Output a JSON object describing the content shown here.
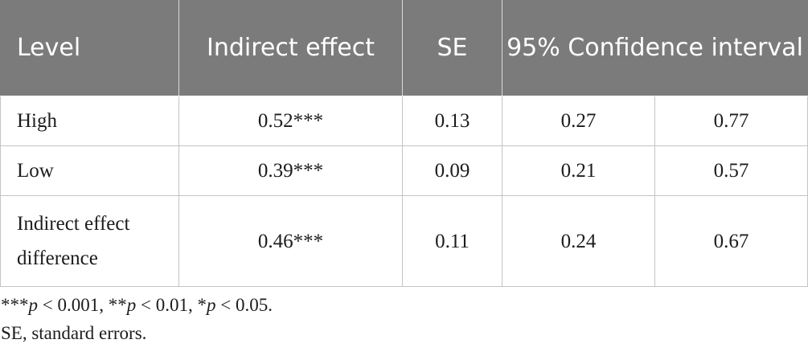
{
  "table": {
    "headers": {
      "level": "Level",
      "indirect_effect": "Indirect effect",
      "se": "SE",
      "ci": "95% Confidence interval"
    },
    "rows": [
      {
        "level": "High",
        "indirect_effect": "0.52***",
        "se": "0.13",
        "ci_lower": "0.27",
        "ci_upper": "0.77"
      },
      {
        "level": "Low",
        "indirect_effect": "0.39***",
        "se": "0.09",
        "ci_lower": "0.21",
        "ci_upper": "0.57"
      },
      {
        "level": "Indirect effect difference",
        "indirect_effect": "0.46***",
        "se": "0.11",
        "ci_lower": "0.24",
        "ci_upper": "0.67"
      }
    ]
  },
  "footnotes": {
    "significance": {
      "s1_stars": "***",
      "s1_p": "p",
      "s1_rest": " < 0.001, ",
      "s2_stars": "**",
      "s2_p": "p",
      "s2_rest": " < 0.01, ",
      "s3_stars": "*",
      "s3_p": "p",
      "s3_rest": " < 0.05."
    },
    "abbreviation": "SE, standard errors."
  },
  "colors": {
    "header_background": "#7b7b7b",
    "header_text": "#ffffff",
    "grid_line": "#c4c4c4",
    "body_text": "#1c1c1c"
  }
}
